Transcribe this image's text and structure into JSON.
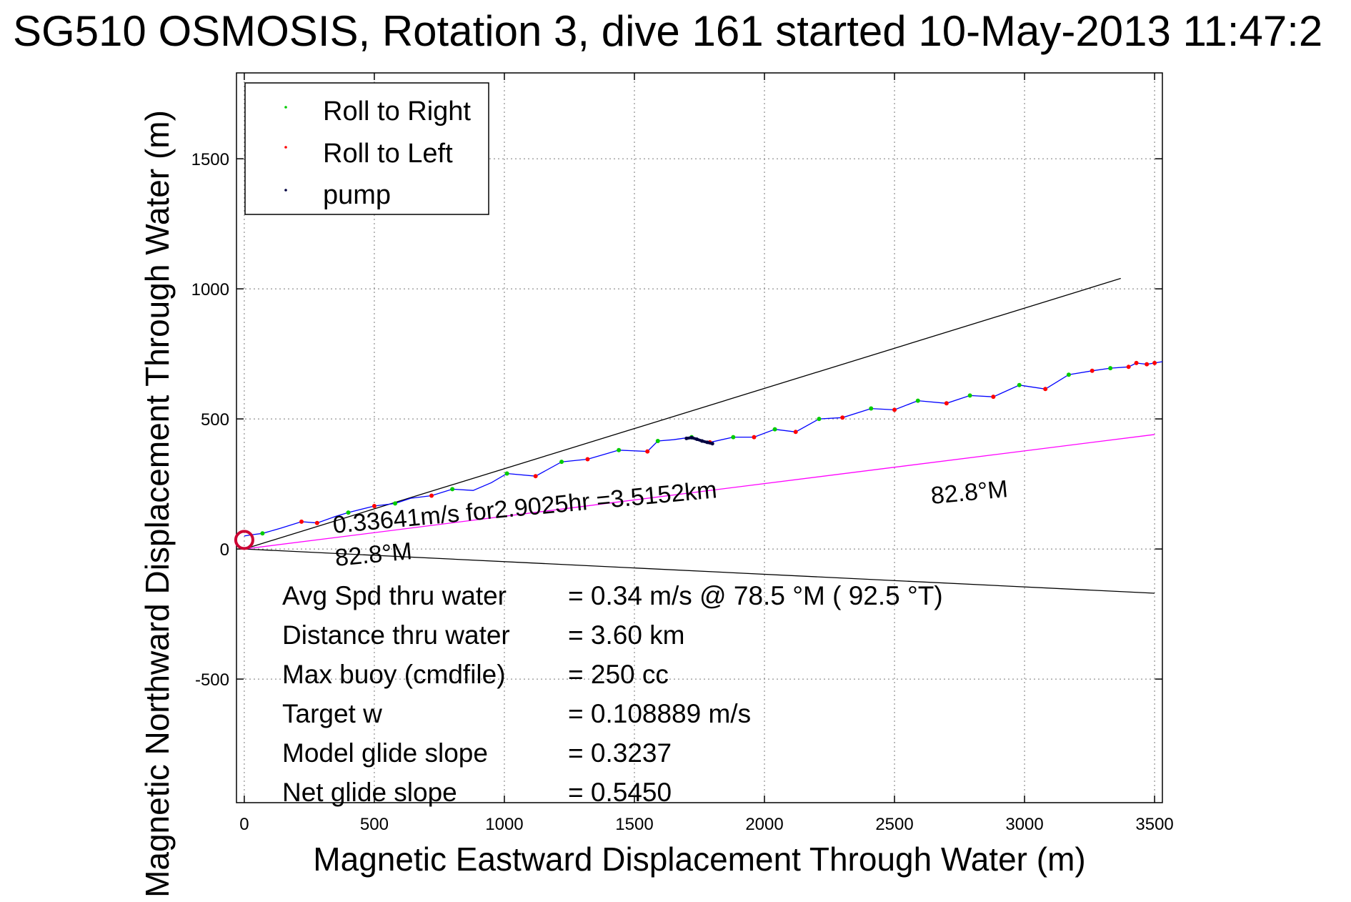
{
  "chart_data": {
    "type": "line",
    "title": "SG510 OSMOSIS, Rotation 3, dive 161 started 10-May-2013 11:47:2",
    "xlabel": "Magnetic Eastward Displacement Through Water (m)",
    "ylabel": "Magnetic Northward Displacement Through Water (m)",
    "xlim": [
      -30,
      3530
    ],
    "ylim": [
      -975,
      1830
    ],
    "xticks": [
      0,
      500,
      1000,
      1500,
      2000,
      2500,
      3000,
      3500
    ],
    "yticks": [
      -500,
      0,
      500,
      1000,
      1500
    ],
    "grid": true,
    "legend": {
      "position": "top-left",
      "entries": [
        "Roll to Right",
        "Roll to Left",
        "pump"
      ]
    },
    "colors": {
      "track": "#0000ff",
      "roll_right": "#00cc00",
      "roll_left": "#ff0000",
      "pump": "#000040",
      "heading_line": "#ff00ff",
      "bound_lines": "#000000"
    },
    "track": {
      "x": [
        0,
        30,
        70,
        140,
        220,
        280,
        350,
        400,
        500,
        580,
        640,
        720,
        800,
        880,
        950,
        1010,
        1120,
        1220,
        1320,
        1440,
        1550,
        1590,
        1650,
        1720,
        1790,
        1880,
        1960,
        2040,
        2120,
        2210,
        2300,
        2410,
        2500,
        2590,
        2700,
        2790,
        2880,
        2980,
        3080,
        3170,
        3260,
        3330,
        3400,
        3430,
        3470,
        3500,
        3530
      ],
      "y": [
        50,
        55,
        60,
        80,
        105,
        100,
        125,
        140,
        165,
        175,
        195,
        205,
        230,
        225,
        255,
        290,
        280,
        335,
        345,
        380,
        375,
        415,
        420,
        430,
        410,
        430,
        430,
        460,
        450,
        500,
        505,
        540,
        535,
        570,
        560,
        590,
        585,
        630,
        615,
        670,
        685,
        695,
        700,
        715,
        710,
        715,
        720
      ]
    },
    "roll_right": {
      "x": [
        70,
        400,
        580,
        800,
        1010,
        1220,
        1440,
        1590,
        1720,
        1880,
        2040,
        2210,
        2410,
        2590,
        2790,
        2980,
        3170,
        3330
      ],
      "y": [
        60,
        140,
        175,
        230,
        290,
        335,
        380,
        415,
        430,
        430,
        460,
        500,
        540,
        570,
        590,
        630,
        670,
        695
      ]
    },
    "roll_left": {
      "x": [
        220,
        280,
        500,
        720,
        1120,
        1320,
        1550,
        1790,
        1960,
        2120,
        2300,
        2500,
        2700,
        2880,
        3080,
        3260,
        3400,
        3430,
        3470,
        3500
      ],
      "y": [
        105,
        100,
        165,
        205,
        280,
        345,
        375,
        410,
        430,
        450,
        505,
        535,
        560,
        585,
        615,
        685,
        700,
        715,
        710,
        715
      ]
    },
    "pump": {
      "x": [
        1700,
        1720,
        1740,
        1760,
        1780,
        1800
      ],
      "y": [
        425,
        428,
        422,
        415,
        410,
        405
      ]
    },
    "upper_bound_line": {
      "x": [
        0,
        3370
      ],
      "y": [
        0,
        1040
      ]
    },
    "lower_bound_line": {
      "x": [
        0,
        3500
      ],
      "y": [
        0,
        -170
      ]
    },
    "heading_line": {
      "x": [
        0,
        3500
      ],
      "y": [
        0,
        440
      ]
    },
    "annotations": {
      "speed_label": "0.33641m/s for2.9025hr =3.5152km",
      "heading_near": "82.8°M",
      "heading_far": "82.8°M"
    },
    "stats": [
      {
        "label": "Avg Spd thru water",
        "value": "=  0.34 m/s @  78.5 °M ( 92.5 °T)"
      },
      {
        "label": "Distance thru water",
        "value": "=  3.60 km"
      },
      {
        "label": "Max buoy (cmdfile)",
        "value": "= 250 cc"
      },
      {
        "label": "Target w",
        "value": "= 0.108889 m/s"
      },
      {
        "label": "Model glide slope",
        "value": "= 0.3237"
      },
      {
        "label": "Net glide slope",
        "value": "= 0.5450"
      }
    ]
  }
}
